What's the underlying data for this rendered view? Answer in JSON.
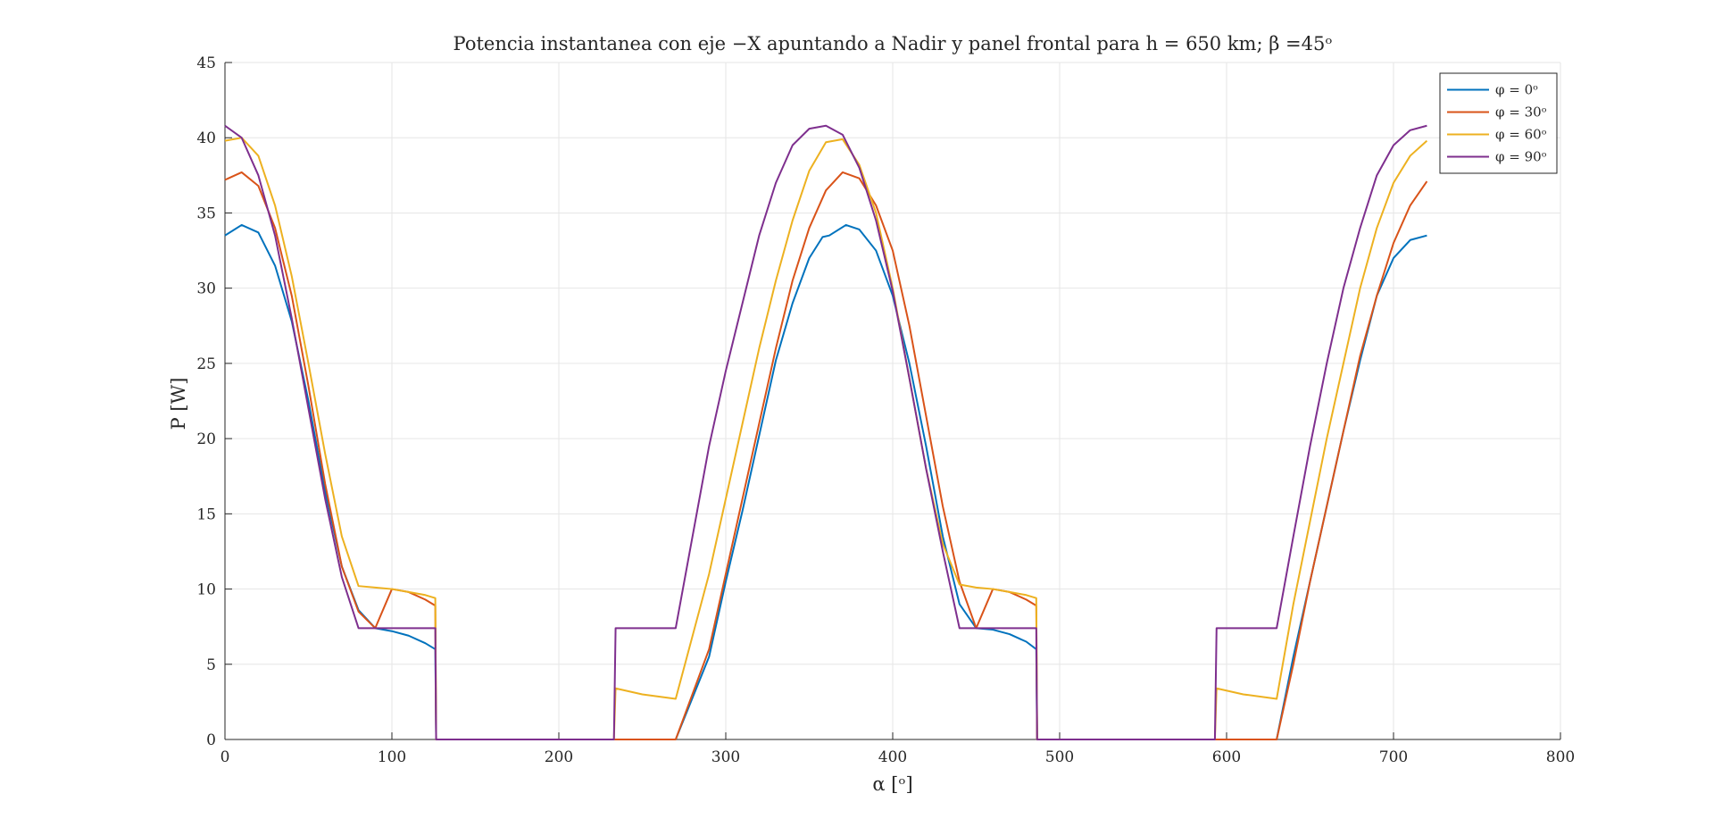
{
  "chart_data": {
    "type": "line",
    "title": "Potencia instantanea con eje −X apuntando a Nadir y panel frontal para h = 650 km; β =45ᵒ",
    "xlabel": "α [ᵒ]",
    "ylabel": "P [W]",
    "xlim": [
      0,
      800
    ],
    "ylim": [
      0,
      45
    ],
    "xticks": [
      0,
      100,
      200,
      300,
      400,
      500,
      600,
      700,
      800
    ],
    "yticks": [
      0,
      5,
      10,
      15,
      20,
      25,
      30,
      35,
      40,
      45
    ],
    "grid": true,
    "legend_position": "top-right",
    "series": [
      {
        "name": "φ = 0ᵒ",
        "color": "#0072BD",
        "x": [
          0,
          10,
          20,
          30,
          40,
          50,
          60,
          70,
          80,
          90,
          100,
          110,
          120,
          126,
          126.5,
          200,
          270,
          290,
          300,
          310,
          320,
          330,
          340,
          350,
          358,
          362,
          372,
          380,
          390,
          400,
          410,
          420,
          430,
          440,
          450,
          460,
          470,
          480,
          486,
          486.5,
          560,
          630,
          640,
          650,
          660,
          670,
          680,
          690,
          700,
          710,
          720
        ],
        "y": [
          33.5,
          34.2,
          33.7,
          31.5,
          27.8,
          22.5,
          16.5,
          11.5,
          8.6,
          7.4,
          7.2,
          6.9,
          6.4,
          6.0,
          0,
          0,
          0,
          5.5,
          10.5,
          15.2,
          20.2,
          25.2,
          29.0,
          32.0,
          33.4,
          33.5,
          34.2,
          33.9,
          32.5,
          29.5,
          25.0,
          19.5,
          13.5,
          9.0,
          7.4,
          7.3,
          7.0,
          6.5,
          6.0,
          0,
          0,
          0,
          5.5,
          10.5,
          15.5,
          20.5,
          25.2,
          29.5,
          32.0,
          33.2,
          33.5
        ]
      },
      {
        "name": "φ = 30ᵒ",
        "color": "#D95319",
        "x": [
          0,
          10,
          20,
          30,
          40,
          50,
          60,
          70,
          80,
          90,
          100,
          110,
          120,
          126,
          126.5,
          200,
          270,
          290,
          300,
          310,
          320,
          330,
          340,
          350,
          360,
          370,
          380,
          390,
          400,
          410,
          420,
          430,
          440,
          450,
          460,
          470,
          480,
          486,
          486.5,
          560,
          630,
          640,
          650,
          660,
          670,
          680,
          690,
          700,
          710,
          720
        ],
        "y": [
          37.2,
          37.7,
          36.8,
          34.0,
          29.5,
          23.5,
          17.0,
          11.5,
          8.5,
          7.4,
          10.0,
          9.8,
          9.3,
          8.9,
          0,
          0,
          0,
          6.0,
          11.0,
          16.0,
          21.0,
          26.0,
          30.5,
          34.0,
          36.5,
          37.7,
          37.3,
          35.5,
          32.5,
          27.5,
          21.5,
          15.5,
          10.5,
          7.4,
          10.0,
          9.8,
          9.3,
          8.9,
          0,
          0,
          0,
          5.0,
          10.5,
          15.5,
          20.5,
          25.5,
          29.5,
          33.0,
          35.5,
          37.1
        ]
      },
      {
        "name": "φ = 60ᵒ",
        "color": "#EDB120",
        "x": [
          0,
          10,
          20,
          30,
          40,
          50,
          60,
          70,
          80,
          90,
          100,
          110,
          120,
          126,
          126.5,
          200,
          233,
          234,
          250,
          270,
          290,
          300,
          310,
          320,
          330,
          340,
          350,
          360,
          370,
          380,
          390,
          400,
          410,
          420,
          430,
          440,
          450,
          460,
          470,
          480,
          486,
          486.5,
          560,
          593,
          594,
          610,
          630,
          640,
          650,
          660,
          670,
          680,
          690,
          700,
          710,
          720
        ],
        "y": [
          39.8,
          40.0,
          38.8,
          35.5,
          30.8,
          25.0,
          19.0,
          13.5,
          10.2,
          10.1,
          10.0,
          9.8,
          9.6,
          9.4,
          0,
          0,
          0,
          3.4,
          3.0,
          2.7,
          11.0,
          16.0,
          21.0,
          26.0,
          30.5,
          34.5,
          37.8,
          39.7,
          39.9,
          38.2,
          35.0,
          30.0,
          24.0,
          18.0,
          13.0,
          10.3,
          10.1,
          10.0,
          9.8,
          9.6,
          9.4,
          0,
          0,
          0,
          3.4,
          3.0,
          2.7,
          9.0,
          14.5,
          20.0,
          25.0,
          30.0,
          34.0,
          37.0,
          38.8,
          39.8
        ]
      },
      {
        "name": "φ = 90ᵒ",
        "color": "#7E2F8E",
        "x": [
          0,
          10,
          20,
          30,
          40,
          50,
          60,
          70,
          80,
          90,
          100,
          110,
          120,
          126,
          126.5,
          200,
          233,
          234,
          250,
          270,
          290,
          300,
          310,
          320,
          330,
          340,
          350,
          360,
          370,
          380,
          390,
          400,
          410,
          420,
          430,
          440,
          450,
          460,
          470,
          480,
          486,
          486.5,
          560,
          593,
          594,
          610,
          630,
          640,
          650,
          660,
          670,
          680,
          690,
          700,
          710,
          720
        ],
        "y": [
          40.8,
          40.0,
          37.5,
          33.5,
          28.0,
          22.0,
          16.0,
          10.8,
          7.4,
          7.4,
          7.4,
          7.4,
          7.4,
          7.4,
          0,
          0,
          0,
          7.4,
          7.4,
          7.4,
          19.5,
          24.5,
          29.0,
          33.5,
          37.0,
          39.5,
          40.6,
          40.8,
          40.2,
          38.0,
          34.5,
          29.8,
          24.0,
          18.0,
          12.5,
          7.4,
          7.4,
          7.4,
          7.4,
          7.4,
          7.4,
          0,
          0,
          0,
          7.4,
          7.4,
          7.4,
          13.5,
          19.5,
          25.0,
          30.0,
          34.0,
          37.5,
          39.5,
          40.5,
          40.8
        ]
      }
    ]
  }
}
